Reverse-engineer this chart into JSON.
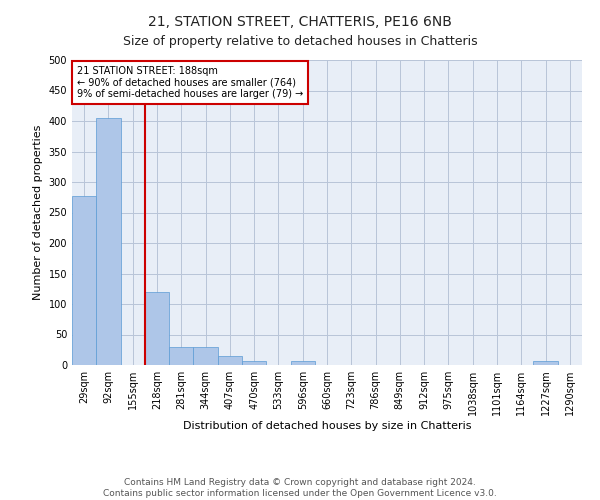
{
  "title": "21, STATION STREET, CHATTERIS, PE16 6NB",
  "subtitle": "Size of property relative to detached houses in Chatteris",
  "xlabel": "Distribution of detached houses by size in Chatteris",
  "ylabel": "Number of detached properties",
  "bar_labels": [
    "29sqm",
    "92sqm",
    "155sqm",
    "218sqm",
    "281sqm",
    "344sqm",
    "407sqm",
    "470sqm",
    "533sqm",
    "596sqm",
    "660sqm",
    "723sqm",
    "786sqm",
    "849sqm",
    "912sqm",
    "975sqm",
    "1038sqm",
    "1101sqm",
    "1164sqm",
    "1227sqm",
    "1290sqm"
  ],
  "bar_values": [
    277,
    405,
    0,
    120,
    29,
    29,
    15,
    6,
    0,
    6,
    0,
    0,
    0,
    0,
    0,
    0,
    0,
    0,
    0,
    6,
    0
  ],
  "bar_color": "#aec6e8",
  "bar_edge_color": "#5b9bd5",
  "property_line_x": 2.5,
  "annotation_text": "21 STATION STREET: 188sqm\n← 90% of detached houses are smaller (764)\n9% of semi-detached houses are larger (79) →",
  "annotation_box_color": "#ffffff",
  "annotation_box_edge_color": "#cc0000",
  "vline_color": "#cc0000",
  "ylim": [
    0,
    500
  ],
  "yticks": [
    0,
    50,
    100,
    150,
    200,
    250,
    300,
    350,
    400,
    450,
    500
  ],
  "footer_line1": "Contains HM Land Registry data © Crown copyright and database right 2024.",
  "footer_line2": "Contains public sector information licensed under the Open Government Licence v3.0.",
  "background_color": "#ffffff",
  "plot_bg_color": "#e8eef7",
  "grid_color": "#b8c4d8",
  "title_fontsize": 10,
  "subtitle_fontsize": 9,
  "axis_label_fontsize": 8,
  "tick_fontsize": 7,
  "annotation_fontsize": 7,
  "footer_fontsize": 6.5
}
